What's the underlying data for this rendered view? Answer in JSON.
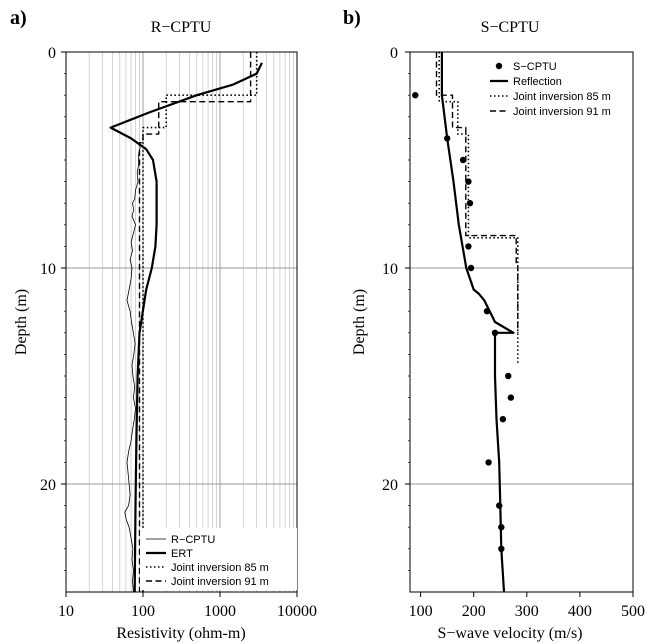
{
  "chart_data": [
    {
      "type": "line",
      "panel_label": "a)",
      "title": "R−CPTU",
      "xlabel": "Resistivity (ohm-m)",
      "ylabel": "Depth (m)",
      "xscale": "log",
      "xlim": [
        10,
        10000
      ],
      "ylim": [
        0,
        25
      ],
      "y_inverted": true,
      "grid": "x: decade and minor lines; y: 10, 20",
      "legend_position": "bottom-right",
      "xticks": [
        "10",
        "100",
        "1000",
        "10000"
      ],
      "yticks": [
        "0",
        "10",
        "20"
      ],
      "series": [
        {
          "name": "R−CPTU",
          "style": "thin",
          "points": [
            [
              92,
              4.4
            ],
            [
              87,
              4.8
            ],
            [
              88,
              5.2
            ],
            [
              84,
              5.6
            ],
            [
              86,
              6
            ],
            [
              80,
              6.4
            ],
            [
              78,
              6.8
            ],
            [
              73,
              7
            ],
            [
              76,
              7.3
            ],
            [
              72,
              7.6
            ],
            [
              80,
              8
            ],
            [
              75,
              8.4
            ],
            [
              70,
              8.8
            ],
            [
              73,
              9.2
            ],
            [
              68,
              9.6
            ],
            [
              72,
              10
            ],
            [
              70,
              10.5
            ],
            [
              66,
              11
            ],
            [
              62,
              11.5
            ],
            [
              68,
              12
            ],
            [
              71,
              12.5
            ],
            [
              75,
              13
            ],
            [
              79,
              13.5
            ],
            [
              76,
              14
            ],
            [
              72,
              14.5
            ],
            [
              74,
              15
            ],
            [
              78,
              15.5
            ],
            [
              75,
              16
            ],
            [
              80,
              16.5
            ],
            [
              77,
              17
            ],
            [
              73,
              17.5
            ],
            [
              70,
              18
            ],
            [
              65,
              18.5
            ],
            [
              62,
              19
            ],
            [
              64,
              19.5
            ],
            [
              66,
              20
            ],
            [
              68,
              20.5
            ],
            [
              65,
              21
            ],
            [
              58,
              21.3
            ],
            [
              60,
              21.6
            ],
            [
              66,
              22
            ],
            [
              70,
              22.5
            ],
            [
              74,
              23
            ],
            [
              72,
              23.5
            ],
            [
              75,
              24
            ],
            [
              73,
              24.5
            ],
            [
              75,
              25
            ]
          ]
        },
        {
          "name": "ERT",
          "style": "thick",
          "points": [
            [
              3500,
              0.5
            ],
            [
              3000,
              1
            ],
            [
              1500,
              1.5
            ],
            [
              500,
              2
            ],
            [
              120,
              2.8
            ],
            [
              38,
              3.5
            ],
            [
              70,
              4
            ],
            [
              110,
              4.5
            ],
            [
              135,
              5
            ],
            [
              150,
              6
            ],
            [
              150,
              8
            ],
            [
              145,
              9
            ],
            [
              130,
              10
            ],
            [
              110,
              11
            ],
            [
              90,
              13
            ],
            [
              85,
              15
            ],
            [
              82,
              18
            ],
            [
              80,
              21
            ],
            [
              78,
              25
            ]
          ]
        },
        {
          "name": "Joint inversion 85 m",
          "style": "dotted",
          "points": [
            [
              3000,
              0
            ],
            [
              3000,
              2
            ],
            [
              200,
              2
            ],
            [
              200,
              3.5
            ],
            [
              100,
              3.5
            ],
            [
              100,
              25
            ]
          ]
        },
        {
          "name": "Joint inversion 91 m",
          "style": "dashed",
          "points": [
            [
              2500,
              0
            ],
            [
              2500,
              2.3
            ],
            [
              160,
              2.3
            ],
            [
              160,
              3.8
            ],
            [
              100,
              3.8
            ],
            [
              100,
              4.2
            ],
            [
              90,
              4.2
            ],
            [
              90,
              25
            ]
          ]
        }
      ]
    },
    {
      "type": "scatter+line",
      "panel_label": "b)",
      "title": "S−CPTU",
      "xlabel": "S−wave velocity (m/s)",
      "ylabel": "Depth (m)",
      "xlim": [
        80,
        500
      ],
      "ylim": [
        0,
        25
      ],
      "y_inverted": true,
      "grid": "y: 10, 20",
      "legend_position": "top-right",
      "xticks": [
        "100",
        "200",
        "300",
        "400",
        "500"
      ],
      "yticks": [
        "0",
        "10",
        "20"
      ],
      "series": [
        {
          "name": "S−CPTU",
          "style": "points",
          "points": [
            [
              90,
              2
            ],
            [
              150,
              4
            ],
            [
              180,
              5
            ],
            [
              190,
              6
            ],
            [
              193,
              7
            ],
            [
              190,
              9
            ],
            [
              195,
              10
            ],
            [
              225,
              12
            ],
            [
              240,
              13
            ],
            [
              265,
              15
            ],
            [
              270,
              16
            ],
            [
              255,
              17
            ],
            [
              228,
              19
            ],
            [
              248,
              21
            ],
            [
              252,
              22
            ],
            [
              252,
              23
            ]
          ]
        },
        {
          "name": "Reflection",
          "style": "thick",
          "points": [
            [
              140,
              0
            ],
            [
              140,
              2
            ],
            [
              150,
              4
            ],
            [
              162,
              6
            ],
            [
              172,
              8
            ],
            [
              186,
              10
            ],
            [
              200,
              11
            ],
            [
              210,
              11.2
            ],
            [
              220,
              11.5
            ],
            [
              240,
              12.5
            ],
            [
              275,
              13
            ],
            [
              240,
              13
            ],
            [
              240,
              15
            ],
            [
              243,
              17
            ],
            [
              248,
              19
            ],
            [
              250,
              21
            ],
            [
              252,
              23
            ],
            [
              257,
              25
            ]
          ]
        },
        {
          "name": "Joint inversion 85 m",
          "style": "dotted",
          "points": [
            [
              135,
              0
            ],
            [
              135,
              2.3
            ],
            [
              170,
              2.3
            ],
            [
              170,
              3.8
            ],
            [
              190,
              3.8
            ],
            [
              190,
              8.6
            ],
            [
              283,
              8.6
            ],
            [
              283,
              14.5
            ]
          ]
        },
        {
          "name": "Joint inversion 91 m",
          "style": "dashed",
          "points": [
            [
              130,
              0
            ],
            [
              130,
              2
            ],
            [
              160,
              2
            ],
            [
              160,
              3.5
            ],
            [
              185,
              3.5
            ],
            [
              185,
              8.5
            ],
            [
              280,
              8.5
            ],
            [
              280,
              9.8
            ],
            [
              283,
              9.8
            ],
            [
              283,
              13
            ]
          ]
        }
      ]
    }
  ]
}
